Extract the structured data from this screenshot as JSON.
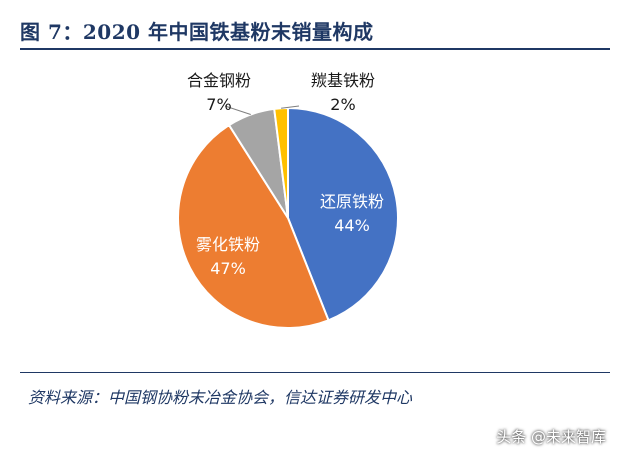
{
  "header": {
    "title": "图 7：2020 年中国铁基粉末销量构成"
  },
  "footer": {
    "source": "资料来源：中国钢协粉末冶金协会，信达证券研发中心"
  },
  "watermark": "头条 @未来智库",
  "chart_data": {
    "type": "pie",
    "title": "",
    "slices": [
      {
        "label": "还原铁粉",
        "percent_text": "44%",
        "value": 44,
        "color": "#4472c4"
      },
      {
        "label": "雾化铁粉",
        "percent_text": "47%",
        "value": 47,
        "color": "#ed7d31"
      },
      {
        "label": "合金钢粉",
        "percent_text": "7%",
        "value": 7,
        "color": "#a5a5a5"
      },
      {
        "label": "羰基铁粉",
        "percent_text": "2%",
        "value": 2,
        "color": "#ffc000"
      }
    ]
  }
}
